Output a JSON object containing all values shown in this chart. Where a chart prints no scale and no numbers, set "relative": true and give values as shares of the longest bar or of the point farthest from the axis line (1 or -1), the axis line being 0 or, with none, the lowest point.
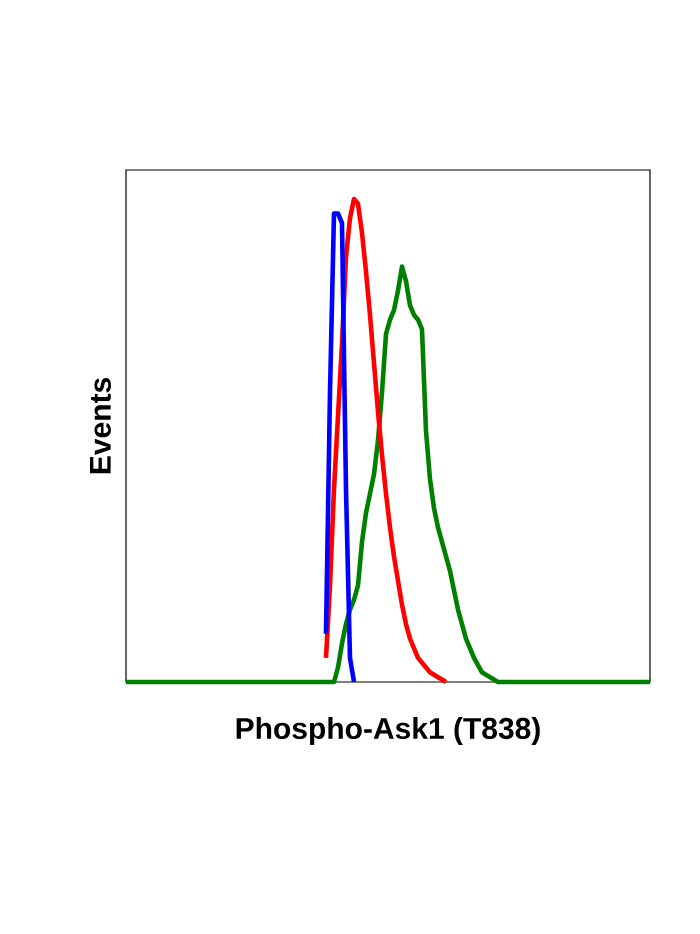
{
  "chart_data": {
    "type": "line",
    "relative": true,
    "xlabel": "Phospho-Ask1 (T838)",
    "ylabel": "Events",
    "categories": [
      null,
      null,
      null,
      null,
      null,
      null,
      null,
      null,
      null,
      null,
      null,
      null,
      null,
      null,
      null,
      null,
      null,
      null,
      null,
      null,
      null,
      null,
      null,
      null,
      null,
      null,
      null,
      null,
      null,
      null,
      null,
      null,
      null,
      null,
      null,
      null,
      null,
      null,
      null,
      null,
      null,
      null,
      null,
      null,
      null,
      null,
      null,
      null,
      null,
      null,
      null,
      null,
      null,
      null,
      null,
      null,
      null,
      null,
      null,
      null,
      null,
      null,
      null,
      null,
      null,
      null,
      null,
      null,
      null,
      null,
      null,
      null,
      null,
      null,
      null,
      null,
      null,
      null,
      null,
      null,
      null,
      null,
      null,
      null,
      null,
      null,
      null,
      null,
      null,
      null,
      null,
      null,
      null,
      null,
      null,
      null,
      null,
      null,
      null,
      null,
      null,
      null,
      null,
      null,
      null,
      null,
      null,
      null,
      null,
      null,
      null,
      null,
      null,
      null,
      null,
      null,
      null,
      null,
      null,
      null,
      null,
      null,
      null,
      null,
      null,
      null,
      null,
      null,
      null,
      null,
      null,
      null
    ],
    "series": [
      {
        "color": "#008000",
        "values": [
          0,
          0,
          0,
          0,
          0,
          0,
          0,
          0,
          0,
          0,
          0,
          0,
          0,
          0,
          0,
          0,
          0,
          0,
          0,
          0,
          0,
          0,
          0,
          0,
          0,
          0,
          0,
          0,
          0,
          0,
          0,
          0,
          0,
          0,
          0,
          0,
          0,
          0,
          0,
          0,
          0,
          0,
          0,
          0,
          0,
          0,
          0,
          0,
          0,
          0,
          0,
          0,
          0,
          0.03,
          0.08,
          0.12,
          0.15,
          0.17,
          0.2,
          0.29,
          0.35,
          0.39,
          0.43,
          0.5,
          0.6,
          0.72,
          0.75,
          0.77,
          0.81,
          0.86,
          0.83,
          0.78,
          0.76,
          0.75,
          0.73,
          0.52,
          0.42,
          0.36,
          0.32,
          0.29,
          0.26,
          0.23,
          0.19,
          0.15,
          0.12,
          0.09,
          0.07,
          0.05,
          0.035,
          0.02,
          0.015,
          0.01,
          0.005,
          0,
          0,
          0,
          0,
          0,
          0,
          0,
          0,
          0,
          0,
          0,
          0,
          0,
          0,
          0,
          0,
          0,
          0,
          0,
          0,
          0,
          0,
          0,
          0,
          0,
          0,
          0,
          0,
          0,
          0,
          0,
          0,
          0,
          0,
          0,
          0,
          0,
          0,
          0
        ]
      },
      {
        "color": "#ff0000",
        "values": [
          null,
          null,
          null,
          null,
          null,
          null,
          null,
          null,
          null,
          null,
          null,
          null,
          null,
          null,
          null,
          null,
          null,
          null,
          null,
          null,
          null,
          null,
          null,
          null,
          null,
          null,
          null,
          null,
          null,
          null,
          null,
          null,
          null,
          null,
          null,
          null,
          null,
          null,
          null,
          null,
          null,
          null,
          null,
          null,
          null,
          null,
          null,
          null,
          null,
          null,
          0.05,
          0.2,
          0.4,
          0.55,
          0.7,
          0.88,
          0.96,
          1,
          0.99,
          0.93,
          0.85,
          0.76,
          0.66,
          0.56,
          0.47,
          0.39,
          0.32,
          0.26,
          0.21,
          0.16,
          0.12,
          0.09,
          0.07,
          0.05,
          0.04,
          0.03,
          0.02,
          0.015,
          0.01,
          0.005,
          0,
          null,
          null,
          null,
          null,
          null,
          null,
          null,
          null,
          null,
          null,
          null,
          null,
          null,
          null,
          null,
          null,
          null,
          null,
          null,
          null,
          null,
          null,
          null,
          null,
          null,
          null,
          null,
          null,
          null,
          null,
          null,
          null,
          null,
          null,
          null,
          null,
          null,
          null,
          null,
          null,
          null,
          null,
          null,
          null,
          null,
          null,
          null,
          null,
          null,
          null,
          null
        ]
      },
      {
        "color": "#0000ff",
        "values": [
          null,
          null,
          null,
          null,
          null,
          null,
          null,
          null,
          null,
          null,
          null,
          null,
          null,
          null,
          null,
          null,
          null,
          null,
          null,
          null,
          null,
          null,
          null,
          null,
          null,
          null,
          null,
          null,
          null,
          null,
          null,
          null,
          null,
          null,
          null,
          null,
          null,
          null,
          null,
          null,
          null,
          null,
          null,
          null,
          null,
          null,
          null,
          null,
          null,
          null,
          0.1,
          0.6,
          0.97,
          0.97,
          0.95,
          0.4,
          0.05,
          0,
          null,
          null,
          null,
          null,
          null,
          null,
          null,
          null,
          null,
          null,
          null,
          null,
          null,
          null,
          null,
          null,
          null,
          null,
          null,
          null,
          null,
          null,
          null,
          null,
          null,
          null,
          null,
          null,
          null,
          null,
          null,
          null,
          null,
          null,
          null,
          null,
          null,
          null,
          null,
          null,
          null,
          null,
          null,
          null,
          null,
          null,
          null,
          null,
          null,
          null,
          null,
          null,
          null,
          null,
          null,
          null,
          null,
          null,
          null,
          null,
          null,
          null,
          null,
          null,
          null,
          null,
          null,
          null,
          null,
          null,
          null,
          null,
          null,
          null
        ]
      }
    ]
  }
}
